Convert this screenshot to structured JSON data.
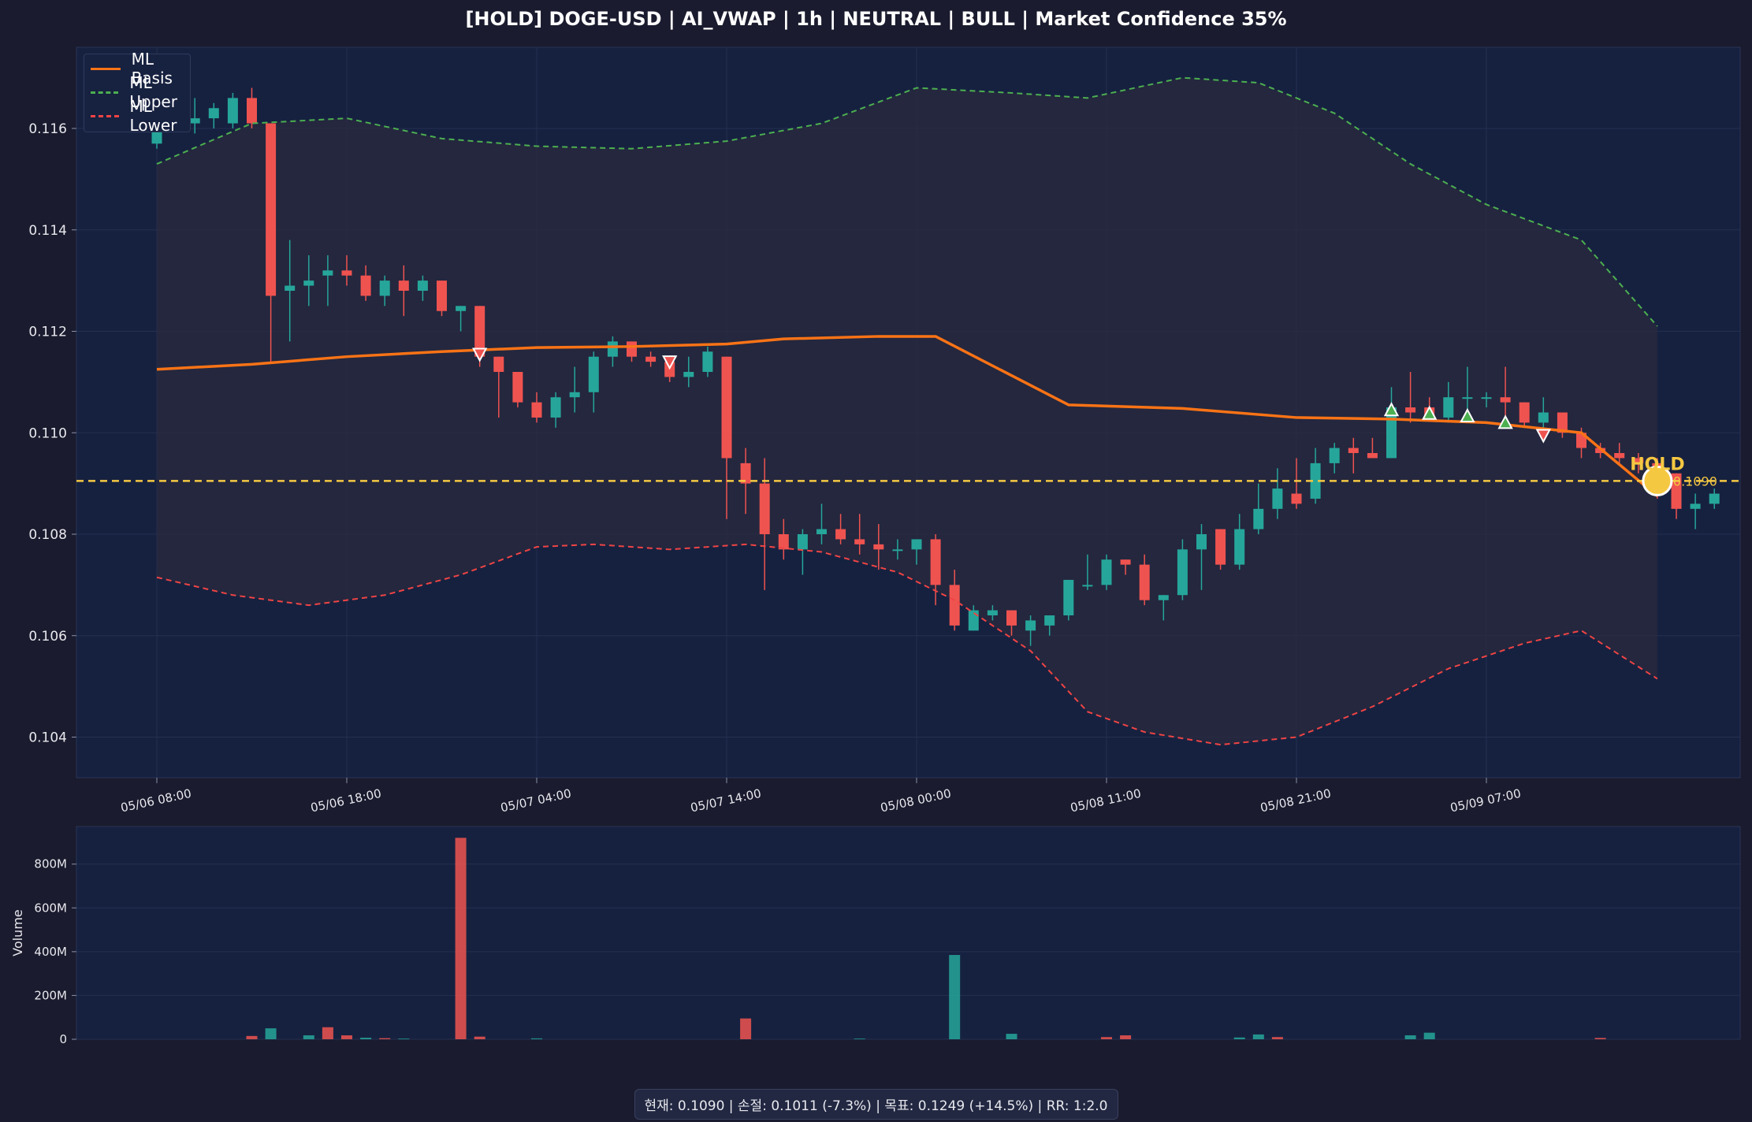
{
  "title": "[HOLD] DOGE-USD  |  AI_VWAP | 1h  |  NEUTRAL | BULL  |  Market Confidence 35%",
  "footer": "현재: 0.1090  |  손절: 0.1011 (-7.3%)  |  목표: 0.1249 (+14.5%)  |  RR: 1:2.0",
  "colors": {
    "background": "#1a1b2e",
    "panel": "#162140",
    "up": "#26a69a",
    "down": "#ef5350",
    "basis": "#f97316",
    "upper": "#4caf50",
    "lower": "#ef4444",
    "price_line": "#f5c842"
  },
  "chart_data": [
    {
      "type": "candlestick",
      "legend": {
        "placement": "top-left",
        "entries": [
          {
            "name": "ML Basis",
            "style": "solid",
            "color": "#f97316"
          },
          {
            "name": "ML Upper",
            "style": "dashed",
            "color": "#4caf50"
          },
          {
            "name": "ML Lower",
            "style": "dashed",
            "color": "#ef4444"
          }
        ]
      },
      "xlabel": "",
      "ylabel": "",
      "ylim": [
        0.1032,
        0.1176
      ],
      "yticks": [
        0.104,
        0.106,
        0.108,
        0.11,
        0.112,
        0.114,
        0.116
      ],
      "ytick_labels": [
        "0.104",
        "0.106",
        "0.108",
        "0.110",
        "0.112",
        "0.114",
        "0.116"
      ],
      "x_ticks": [
        {
          "index": 0,
          "label": "05/06 08:00"
        },
        {
          "index": 10,
          "label": "05/06 18:00"
        },
        {
          "index": 20,
          "label": "05/07 04:00"
        },
        {
          "index": 30,
          "label": "05/07 14:00"
        },
        {
          "index": 40,
          "label": "05/08 00:00"
        },
        {
          "index": 50,
          "label": "05/08 11:00"
        },
        {
          "index": 60,
          "label": "05/08 21:00"
        },
        {
          "index": 70,
          "label": "05/09 07:00"
        }
      ],
      "candles": [
        [
          0.1157,
          0.1162,
          0.1156,
          0.116
        ],
        [
          0.1162,
          0.1164,
          0.116,
          0.1161
        ],
        [
          0.1161,
          0.1166,
          0.1159,
          0.1162
        ],
        [
          0.1162,
          0.1165,
          0.116,
          0.1164
        ],
        [
          0.1161,
          0.1167,
          0.116,
          0.1166
        ],
        [
          0.1166,
          0.1168,
          0.116,
          0.1161
        ],
        [
          0.1161,
          0.1161,
          0.1114,
          0.1127
        ],
        [
          0.1128,
          0.1138,
          0.1118,
          0.1129
        ],
        [
          0.1129,
          0.1135,
          0.1125,
          0.113
        ],
        [
          0.1131,
          0.1135,
          0.1125,
          0.1132
        ],
        [
          0.1132,
          0.1135,
          0.1129,
          0.1131
        ],
        [
          0.1131,
          0.1133,
          0.1126,
          0.1127
        ],
        [
          0.1127,
          0.1131,
          0.1125,
          0.113
        ],
        [
          0.113,
          0.1133,
          0.1123,
          0.1128
        ],
        [
          0.1128,
          0.1131,
          0.1126,
          0.113
        ],
        [
          0.113,
          0.113,
          0.1123,
          0.1124
        ],
        [
          0.1124,
          0.1125,
          0.112,
          0.1125
        ],
        [
          0.1125,
          0.1125,
          0.1113,
          0.1115
        ],
        [
          0.1115,
          0.1115,
          0.1103,
          0.1112
        ],
        [
          0.1112,
          0.1112,
          0.1105,
          0.1106
        ],
        [
          0.1106,
          0.1108,
          0.1102,
          0.1103
        ],
        [
          0.1103,
          0.1108,
          0.1101,
          0.1107
        ],
        [
          0.1107,
          0.1113,
          0.1104,
          0.1108
        ],
        [
          0.1108,
          0.1116,
          0.1104,
          0.1115
        ],
        [
          0.1115,
          0.1119,
          0.1113,
          0.1118
        ],
        [
          0.1118,
          0.1118,
          0.1114,
          0.1115
        ],
        [
          0.1115,
          0.1116,
          0.1113,
          0.1114
        ],
        [
          0.1114,
          0.1115,
          0.111,
          0.1111
        ],
        [
          0.1111,
          0.1115,
          0.1109,
          0.1112
        ],
        [
          0.1112,
          0.1117,
          0.1111,
          0.1116
        ],
        [
          0.1115,
          0.1115,
          0.1083,
          0.1095
        ],
        [
          0.1094,
          0.1097,
          0.1084,
          0.109
        ],
        [
          0.109,
          0.1095,
          0.1069,
          0.108
        ],
        [
          0.108,
          0.1083,
          0.1075,
          0.1077
        ],
        [
          0.1077,
          0.1081,
          0.1072,
          0.108
        ],
        [
          0.108,
          0.1086,
          0.1078,
          0.1081
        ],
        [
          0.1081,
          0.1084,
          0.1078,
          0.1079
        ],
        [
          0.1079,
          0.1084,
          0.1076,
          0.1078
        ],
        [
          0.1078,
          0.1082,
          0.1073,
          0.1077
        ],
        [
          0.1077,
          0.1079,
          0.1075,
          0.1077
        ],
        [
          0.1077,
          0.1079,
          0.1074,
          0.1079
        ],
        [
          0.1079,
          0.108,
          0.1066,
          0.107
        ],
        [
          0.107,
          0.1073,
          0.1061,
          0.1062
        ],
        [
          0.1061,
          0.1066,
          0.1061,
          0.1065
        ],
        [
          0.1064,
          0.1066,
          0.1063,
          0.1065
        ],
        [
          0.1065,
          0.1065,
          0.106,
          0.1062
        ],
        [
          0.1061,
          0.1064,
          0.1058,
          0.1063
        ],
        [
          0.1062,
          0.1064,
          0.106,
          0.1064
        ],
        [
          0.1064,
          0.1071,
          0.1063,
          0.1071
        ],
        [
          0.107,
          0.1076,
          0.1069,
          0.107
        ],
        [
          0.107,
          0.1076,
          0.1069,
          0.1075
        ],
        [
          0.1075,
          0.1075,
          0.1072,
          0.1074
        ],
        [
          0.1074,
          0.1076,
          0.1066,
          0.1067
        ],
        [
          0.1067,
          0.1068,
          0.1063,
          0.1068
        ],
        [
          0.1068,
          0.1079,
          0.1067,
          0.1077
        ],
        [
          0.1077,
          0.1082,
          0.1069,
          0.108
        ],
        [
          0.1081,
          0.1081,
          0.1073,
          0.1074
        ],
        [
          0.1074,
          0.1084,
          0.1073,
          0.1081
        ],
        [
          0.1081,
          0.109,
          0.108,
          0.1085
        ],
        [
          0.1085,
          0.1093,
          0.1083,
          0.1089
        ],
        [
          0.1088,
          0.1095,
          0.1085,
          0.1086
        ],
        [
          0.1087,
          0.1097,
          0.1086,
          0.1094
        ],
        [
          0.1094,
          0.1098,
          0.1092,
          0.1097
        ],
        [
          0.1097,
          0.1099,
          0.1092,
          0.1096
        ],
        [
          0.1096,
          0.1099,
          0.1095,
          0.1095
        ],
        [
          0.1095,
          0.1109,
          0.1095,
          0.1105
        ],
        [
          0.1105,
          0.1112,
          0.1102,
          0.1104
        ],
        [
          0.1105,
          0.1107,
          0.1103,
          0.1103
        ],
        [
          0.1103,
          0.111,
          0.1102,
          0.1107
        ],
        [
          0.1107,
          0.1113,
          0.1102,
          0.1107
        ],
        [
          0.1107,
          0.1108,
          0.1105,
          0.1107
        ],
        [
          0.1107,
          0.1113,
          0.1102,
          0.1106
        ],
        [
          0.1106,
          0.1106,
          0.1101,
          0.1102
        ],
        [
          0.1102,
          0.1107,
          0.1099,
          0.1104
        ],
        [
          0.1104,
          0.1104,
          0.1099,
          0.11
        ],
        [
          0.11,
          0.1101,
          0.1095,
          0.1097
        ],
        [
          0.1097,
          0.1098,
          0.1095,
          0.1096
        ],
        [
          0.1096,
          0.1098,
          0.1094,
          0.1095
        ],
        [
          0.1095,
          0.1096,
          0.1092,
          0.1094
        ],
        [
          0.1094,
          0.1095,
          0.1087,
          0.1092
        ],
        [
          0.1092,
          0.1092,
          0.1083,
          0.1085
        ],
        [
          0.1085,
          0.1088,
          0.1081,
          0.1086
        ],
        [
          0.1086,
          0.1089,
          0.1085,
          0.1088
        ]
      ],
      "candle_value_order": [
        "open",
        "high",
        "low",
        "close"
      ],
      "series": [
        {
          "name": "ML Basis",
          "values": [
            [
              0,
              0.11125
            ],
            [
              5,
              0.11135
            ],
            [
              10,
              0.1115
            ],
            [
              15,
              0.1116
            ],
            [
              20,
              0.11168
            ],
            [
              25,
              0.1117
            ],
            [
              30,
              0.11175
            ],
            [
              33,
              0.11185
            ],
            [
              38,
              0.1119
            ],
            [
              41,
              0.1119
            ],
            [
              48,
              0.11055
            ],
            [
              54,
              0.11048
            ],
            [
              60,
              0.1103
            ],
            [
              65,
              0.11027
            ],
            [
              70,
              0.1102
            ],
            [
              75,
              0.11
            ],
            [
              79,
              0.10875
            ]
          ]
        },
        {
          "name": "ML Upper",
          "values": [
            [
              0,
              0.1153
            ],
            [
              5,
              0.1161
            ],
            [
              10,
              0.1162
            ],
            [
              15,
              0.1158
            ],
            [
              20,
              0.11565
            ],
            [
              25,
              0.1156
            ],
            [
              30,
              0.11575
            ],
            [
              35,
              0.1161
            ],
            [
              40,
              0.1168
            ],
            [
              45,
              0.1167
            ],
            [
              49,
              0.1166
            ],
            [
              54,
              0.117
            ],
            [
              58,
              0.1169
            ],
            [
              62,
              0.1163
            ],
            [
              66,
              0.1153
            ],
            [
              70,
              0.1145
            ],
            [
              75,
              0.1138
            ],
            [
              79,
              0.1121
            ]
          ]
        },
        {
          "name": "ML Lower",
          "values": [
            [
              0,
              0.10715
            ],
            [
              4,
              0.1068
            ],
            [
              8,
              0.1066
            ],
            [
              12,
              0.1068
            ],
            [
              16,
              0.1072
            ],
            [
              20,
              0.10775
            ],
            [
              23,
              0.1078
            ],
            [
              27,
              0.1077
            ],
            [
              31,
              0.1078
            ],
            [
              35,
              0.10765
            ],
            [
              39,
              0.10725
            ],
            [
              42,
              0.1067
            ],
            [
              46,
              0.1057
            ],
            [
              49,
              0.1045
            ],
            [
              52,
              0.1041
            ],
            [
              56,
              0.10385
            ],
            [
              60,
              0.104
            ],
            [
              64,
              0.1046
            ],
            [
              68,
              0.10535
            ],
            [
              72,
              0.10585
            ],
            [
              75,
              0.1061
            ],
            [
              79,
              0.10515
            ]
          ]
        }
      ],
      "reference_line": {
        "value": 0.10905,
        "style": "dashed"
      },
      "markers": {
        "down": [
          [
            17,
            0.11155
          ],
          [
            27,
            0.1114
          ],
          [
            73,
            0.10995
          ]
        ],
        "up": [
          [
            65,
            0.11045
          ],
          [
            67,
            0.11038
          ],
          [
            69,
            0.11033
          ],
          [
            71,
            0.1102
          ]
        ]
      },
      "annotation": {
        "text": "HOLD",
        "price_label": "0.1090",
        "index": 79,
        "value": 0.10905
      }
    },
    {
      "type": "bar",
      "ylabel": "Volume",
      "ylim": [
        0,
        950
      ],
      "yticks": [
        0,
        200,
        400,
        600,
        800
      ],
      "ytick_labels": [
        "0",
        "200M",
        "400M",
        "600M",
        "800M"
      ],
      "unit": "M",
      "volumes": [
        [
          5,
          15,
          "down"
        ],
        [
          6,
          50,
          "up"
        ],
        [
          8,
          18,
          "up"
        ],
        [
          9,
          55,
          "down"
        ],
        [
          10,
          18,
          "down"
        ],
        [
          11,
          7,
          "up"
        ],
        [
          12,
          5,
          "down"
        ],
        [
          13,
          3,
          "up"
        ],
        [
          16,
          920,
          "down"
        ],
        [
          17,
          12,
          "down"
        ],
        [
          20,
          4,
          "up"
        ],
        [
          31,
          95,
          "down"
        ],
        [
          37,
          3,
          "up"
        ],
        [
          42,
          385,
          "up"
        ],
        [
          45,
          25,
          "up"
        ],
        [
          50,
          10,
          "down"
        ],
        [
          51,
          18,
          "down"
        ],
        [
          57,
          8,
          "up"
        ],
        [
          58,
          22,
          "up"
        ],
        [
          59,
          10,
          "down"
        ],
        [
          66,
          18,
          "up"
        ],
        [
          67,
          30,
          "up"
        ],
        [
          76,
          6,
          "down"
        ]
      ]
    }
  ]
}
